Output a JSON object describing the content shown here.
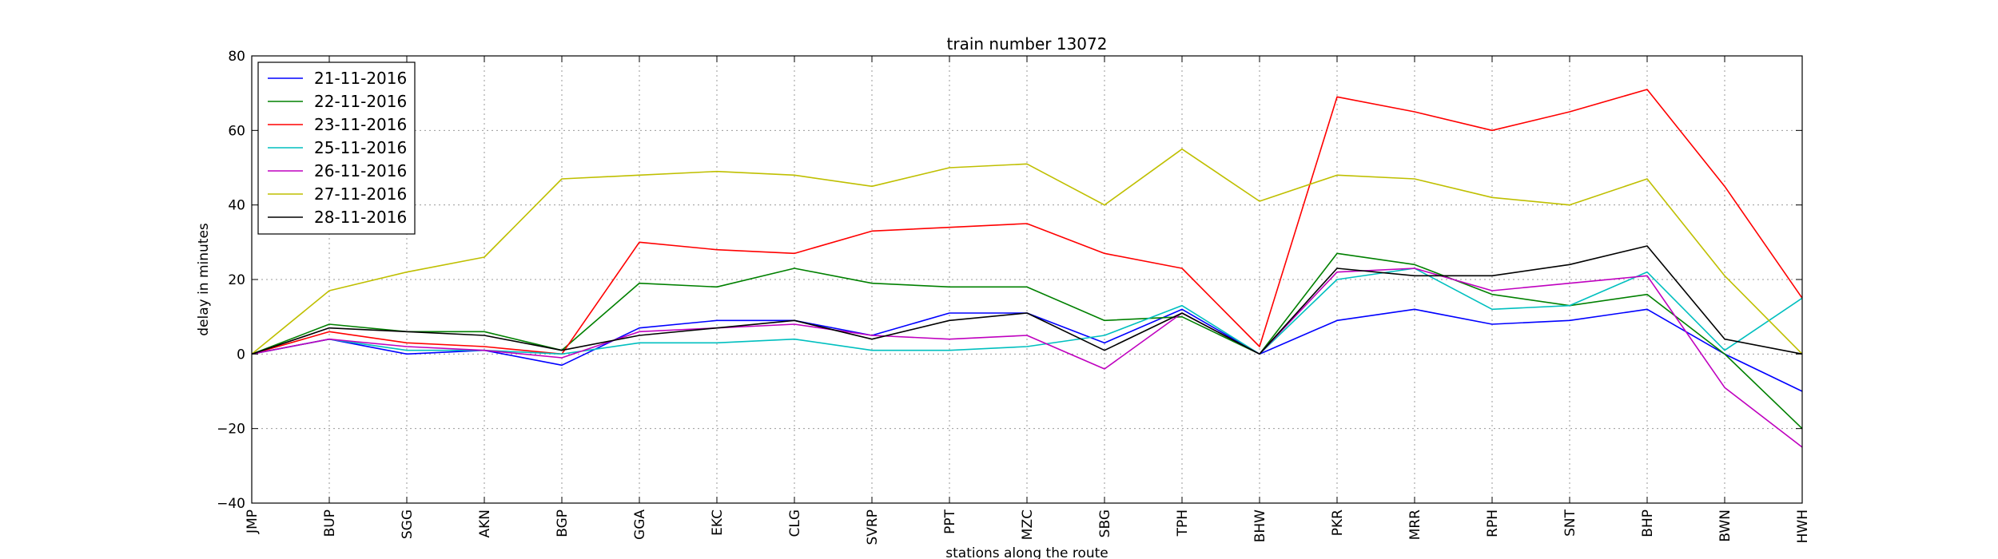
{
  "chart_data": {
    "type": "line",
    "title": "train number 13072",
    "xlabel": "stations along the route",
    "ylabel": "delay in minutes",
    "ylim": [
      -40,
      80
    ],
    "yticks": [
      -40,
      -20,
      0,
      20,
      40,
      60,
      80
    ],
    "ytick_labels": [
      "−40",
      "−20",
      "0",
      "20",
      "40",
      "60",
      "80"
    ],
    "grid": true,
    "legend_position": "upper-left",
    "categories": [
      "JMP",
      "BUP",
      "SGG",
      "AKN",
      "BGP",
      "GGA",
      "EKC",
      "CLG",
      "SVRP",
      "PPT",
      "MZC",
      "SBG",
      "TPH",
      "BHW",
      "PKR",
      "MRR",
      "RPH",
      "SNT",
      "BHP",
      "BWN",
      "HWH"
    ],
    "series": [
      {
        "name": "21-11-2016",
        "color": "#0000ff",
        "values": [
          0,
          4,
          0,
          1,
          -3,
          7,
          9,
          9,
          5,
          11,
          11,
          3,
          12,
          0,
          9,
          12,
          8,
          9,
          12,
          0,
          -10
        ]
      },
      {
        "name": "22-11-2016",
        "color": "#008000",
        "values": [
          0,
          8,
          6,
          6,
          1,
          19,
          18,
          23,
          19,
          18,
          18,
          9,
          10,
          0,
          27,
          24,
          16,
          13,
          16,
          0,
          -20
        ]
      },
      {
        "name": "23-11-2016",
        "color": "#ff0000",
        "values": [
          0,
          6,
          3,
          2,
          0,
          30,
          28,
          27,
          33,
          34,
          35,
          27,
          23,
          2,
          69,
          65,
          60,
          65,
          71,
          45,
          15
        ]
      },
      {
        "name": "25-11-2016",
        "color": "#00bfbf",
        "values": [
          0,
          4,
          1,
          1,
          0,
          3,
          3,
          4,
          1,
          1,
          2,
          5,
          13,
          0,
          20,
          23,
          12,
          13,
          22,
          1,
          15
        ]
      },
      {
        "name": "26-11-2016",
        "color": "#bf00bf",
        "values": [
          0,
          4,
          2,
          1,
          -1,
          6,
          7,
          8,
          5,
          4,
          5,
          -4,
          11,
          0,
          22,
          23,
          17,
          19,
          21,
          -9,
          -25
        ]
      },
      {
        "name": "27-11-2016",
        "color": "#bfbf00",
        "values": [
          0,
          17,
          22,
          26,
          47,
          48,
          49,
          48,
          45,
          50,
          51,
          40,
          55,
          41,
          48,
          47,
          42,
          40,
          47,
          21,
          0
        ]
      },
      {
        "name": "28-11-2016",
        "color": "#000000",
        "values": [
          0,
          7,
          6,
          5,
          1,
          5,
          7,
          9,
          4,
          9,
          11,
          1,
          11,
          0,
          23,
          21,
          21,
          24,
          29,
          4,
          0
        ]
      }
    ]
  }
}
